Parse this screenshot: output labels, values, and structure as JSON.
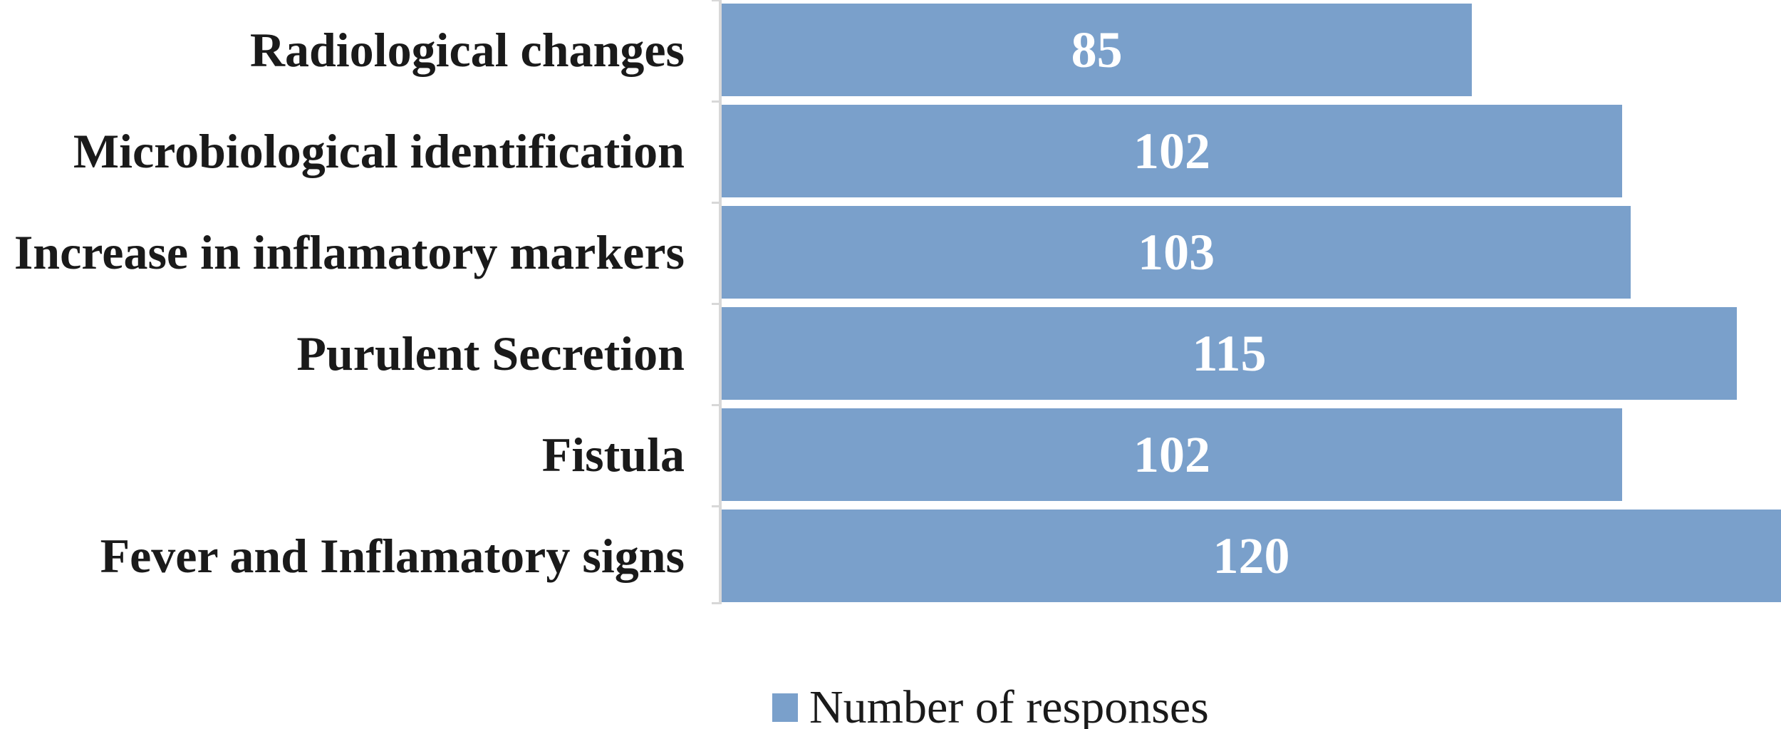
{
  "chart_data": {
    "type": "bar",
    "orientation": "horizontal",
    "title": "",
    "xlabel": "",
    "ylabel": "",
    "categories": [
      "Radiological changes",
      "Microbiological identification",
      "Increase in inflamatory markers",
      "Purulent Secretion",
      "Fistula",
      "Fever and Inflamatory signs"
    ],
    "series": [
      {
        "name": "Number of responses",
        "values": [
          85,
          102,
          103,
          115,
          102,
          120
        ]
      }
    ],
    "data_labels": [
      "85",
      "102",
      "103",
      "115",
      "102",
      "120"
    ],
    "xlim": [
      0,
      120
    ],
    "grid": false,
    "legend_position": "bottom",
    "colors": {
      "bar": "#7AA0CB",
      "axis_line": "#D8D8D8",
      "category_label": "#1A1A1A",
      "value_label": "#FFFFFF"
    }
  },
  "legend": {
    "label": "Number of responses",
    "swatch_icon": "series-color-square"
  }
}
